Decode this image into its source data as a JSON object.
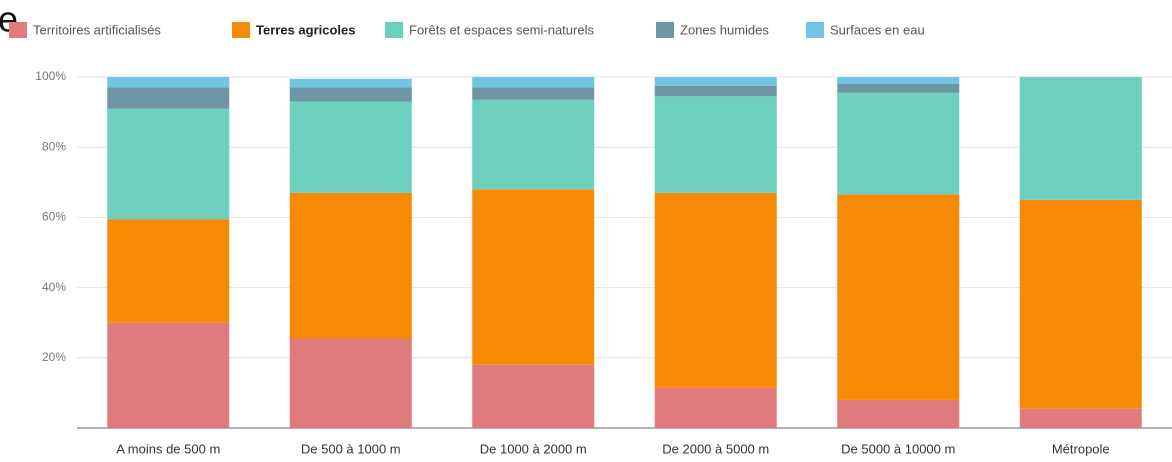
{
  "chart_data": {
    "type": "stacked_bar",
    "title": "e",
    "categories": [
      "A moins de 500 m",
      "De 500 à 1000 m",
      "De 1000 à 2000 m",
      "De 2000 à 5000 m",
      "De 5000 à 10000 m",
      "Métropole"
    ],
    "series": [
      {
        "name": "Territoires artificialisés",
        "color": "#e07b7d",
        "values": [
          30,
          25.5,
          18,
          11.5,
          8,
          5.5
        ]
      },
      {
        "name": "Terres agricoles",
        "color": "#f78a05",
        "values": [
          29.5,
          41.5,
          50,
          55.5,
          58.5,
          59.5
        ]
      },
      {
        "name": "Forêts et espaces semi-naturels",
        "color": "#6dcfbd",
        "values": [
          31.5,
          26,
          25.5,
          27.5,
          29,
          35
        ]
      },
      {
        "name": "Zones humides",
        "color": "#6f96a5",
        "values": [
          6,
          4,
          3.5,
          3,
          2.5,
          0
        ]
      },
      {
        "name": "Surfaces en eau",
        "color": "#70c5e0",
        "values": [
          3,
          2.5,
          3,
          2.5,
          2,
          0
        ]
      }
    ],
    "ylim": [
      0,
      100
    ],
    "yticks": [
      {
        "value": 20,
        "label": "20%"
      },
      {
        "value": 40,
        "label": "40%"
      },
      {
        "value": 60,
        "label": "60%"
      },
      {
        "value": 80,
        "label": "80%"
      },
      {
        "value": 100,
        "label": "100%"
      }
    ],
    "grid": true,
    "legend": "top"
  }
}
